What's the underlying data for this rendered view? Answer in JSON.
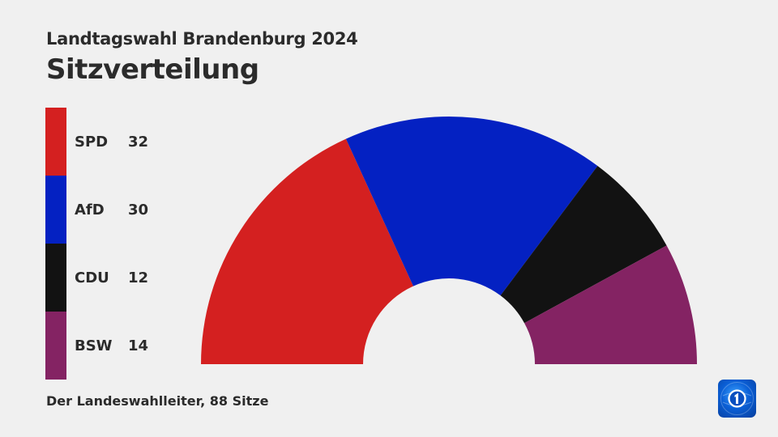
{
  "header": {
    "subtitle": "Landtagswahl Brandenburg 2024",
    "title": "Sitzverteilung"
  },
  "legend": [
    {
      "party": "SPD",
      "seats": "32",
      "color": "#d42020"
    },
    {
      "party": "AfD",
      "seats": "30",
      "color": "#0421c2"
    },
    {
      "party": "CDU",
      "seats": "12",
      "color": "#121212"
    },
    {
      "party": "BSW",
      "seats": "14",
      "color": "#842363"
    }
  ],
  "footer": {
    "source": "Der Landeswahlleiter, 88 Sitze"
  },
  "logo": {
    "icon": "tagesschau-logo-icon"
  },
  "chart_data": {
    "type": "pie",
    "subtype": "semicircle-donut (parliament seat distribution)",
    "title": "Sitzverteilung",
    "subtitle": "Landtagswahl Brandenburg 2024",
    "categories": [
      "SPD",
      "AfD",
      "CDU",
      "BSW"
    ],
    "values": [
      32,
      30,
      12,
      14
    ],
    "colors": [
      "#d42020",
      "#0421c2",
      "#121212",
      "#842363"
    ],
    "total": 88,
    "legend_position": "left",
    "source": "Der Landeswahlleiter, 88 Sitze"
  }
}
